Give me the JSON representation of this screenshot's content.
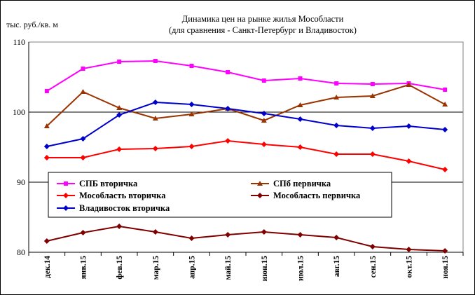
{
  "chart_data": {
    "type": "line",
    "title": "Динамика цен на рынке жилья Мособласти",
    "subtitle": "(для сравнения - Санкт-Петербург и Владивосток)",
    "ylabel": "тыс. руб./кв. м",
    "ylim": [
      80,
      110
    ],
    "yticks": [
      80,
      90,
      100,
      110
    ],
    "grid": true,
    "legend_position": "center-left",
    "categories": [
      "дек.14",
      "янв.15",
      "фев.15",
      "мар.15",
      "апр.15",
      "май.15",
      "июн.15",
      "июл.15",
      "авг.15",
      "сен.15",
      "окт.15",
      "ноя.15"
    ],
    "series": [
      {
        "name": "СПБ вторичка",
        "color": "#FF00FF",
        "marker": "square",
        "values": [
          103.0,
          106.2,
          107.2,
          107.3,
          106.6,
          105.7,
          104.5,
          104.8,
          104.1,
          104.0,
          104.1,
          103.2
        ]
      },
      {
        "name": "СПб первичка",
        "color": "#993300",
        "marker": "triangle",
        "values": [
          98.0,
          102.9,
          100.6,
          99.1,
          99.7,
          100.5,
          98.8,
          101.0,
          102.1,
          102.3,
          103.9,
          101.1
        ]
      },
      {
        "name": "Мособласть вторичка",
        "color": "#FF0000",
        "marker": "diamond",
        "values": [
          93.5,
          93.5,
          94.7,
          94.8,
          95.1,
          95.9,
          95.4,
          95.0,
          94.0,
          94.0,
          93.0,
          91.8
        ]
      },
      {
        "name": "Мособласть первичка",
        "color": "#800000",
        "marker": "diamond",
        "values": [
          81.6,
          82.8,
          83.7,
          82.9,
          82.0,
          82.5,
          82.9,
          82.5,
          82.1,
          80.8,
          80.4,
          80.2
        ]
      },
      {
        "name": "Владивосток вторичка",
        "color": "#0000CC",
        "marker": "diamond",
        "values": [
          95.1,
          96.2,
          99.6,
          101.4,
          101.1,
          100.5,
          99.8,
          99.0,
          98.1,
          97.7,
          98.0,
          97.5
        ]
      }
    ]
  }
}
